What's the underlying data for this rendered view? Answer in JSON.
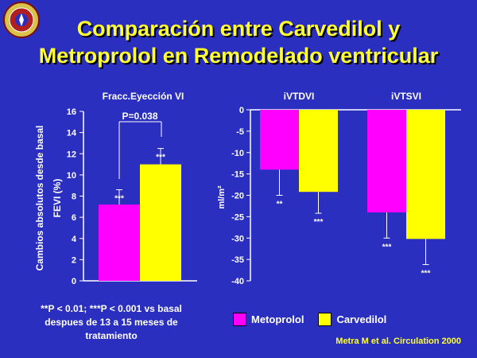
{
  "slide": {
    "title_line1": "Comparación entre Carvedilol y",
    "title_line2": "Metroprolol en Remodelado ventricular",
    "footnote_line1": "**P < 0.01; ***P < 0.001 vs basal",
    "footnote_line2": "despues de 13 a 15 meses de",
    "footnote_line3": "tratamiento",
    "citation": "Metra M et al. Circulation 2000",
    "legend": [
      {
        "name": "Metoprolol",
        "color": "#ff00ff"
      },
      {
        "name": "Carvedilol",
        "color": "#ffff00"
      }
    ],
    "logo_icon": "university-seal-icon"
  },
  "chart_data": [
    {
      "type": "bar",
      "title": "Fracc.Eyección VI",
      "ylabel_outer": "Cambios absolutos desde basal",
      "ylabel": "FEVI (%)",
      "ylim": [
        0,
        16
      ],
      "yticks": [
        0,
        2,
        4,
        6,
        8,
        10,
        12,
        14,
        16
      ],
      "series": [
        {
          "name": "Metoprolol",
          "values": [
            7.2
          ],
          "error": [
            1.4
          ],
          "significance": [
            "***"
          ],
          "color": "#ff00ff"
        },
        {
          "name": "Carvedilol",
          "values": [
            11.0
          ],
          "error": [
            1.5
          ],
          "significance": [
            "***"
          ],
          "color": "#ffff00"
        }
      ],
      "comparison": "P=0.038",
      "grid": false
    },
    {
      "type": "bar",
      "categories": [
        "iVTDVI",
        "iVTSVI"
      ],
      "ylabel": "ml/m²",
      "ylim": [
        -40,
        0
      ],
      "yticks": [
        0,
        -5,
        -10,
        -15,
        -20,
        -25,
        -30,
        -35,
        -40
      ],
      "series": [
        {
          "name": "Metoprolol",
          "values": [
            -14,
            -24
          ],
          "error": [
            6,
            6
          ],
          "significance": [
            "**",
            "***"
          ],
          "color": "#ff00ff"
        },
        {
          "name": "Carvedilol",
          "values": [
            -19.2,
            -30.2
          ],
          "error": [
            5,
            6
          ],
          "significance": [
            "***",
            "***"
          ],
          "color": "#ffff00"
        }
      ],
      "grid": false
    }
  ]
}
